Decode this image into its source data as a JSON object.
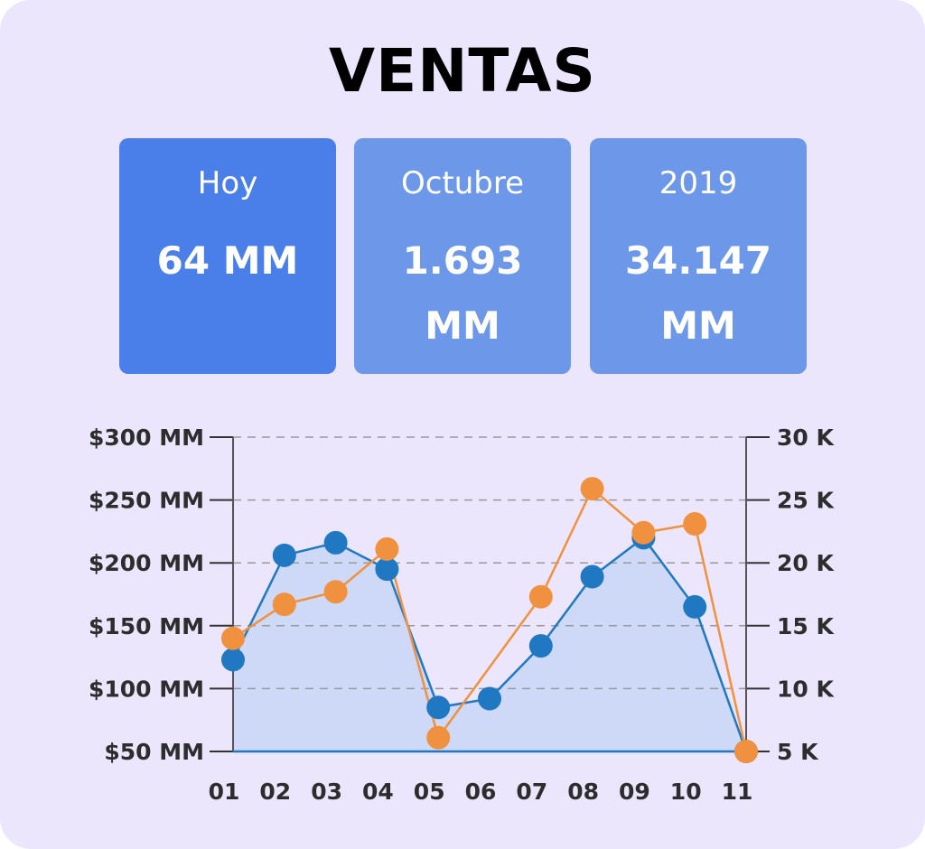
{
  "title": "VENTAS",
  "kpis": [
    {
      "label": "Hoy",
      "value": "64 MM"
    },
    {
      "label": "Octubre",
      "value": "1.693 MM"
    },
    {
      "label": "2019",
      "value": "34.147 MM"
    }
  ],
  "colors": {
    "background": "#ebe6fc",
    "kpi_primary": "#4a7fe9",
    "kpi_secondary": "#6d98e9",
    "series_blue": "#1f78c1",
    "series_orange": "#f0913f",
    "area_fill": "#cdd9f6",
    "grid": "#9a9a9a"
  },
  "chart_data": {
    "type": "line",
    "title": "",
    "categories": [
      "01",
      "02",
      "03",
      "04",
      "05",
      "06",
      "07",
      "08",
      "09",
      "10",
      "11"
    ],
    "series": [
      {
        "axis": "left",
        "style": "area",
        "color": "#1f78c1",
        "values": [
          123,
          206,
          216,
          195,
          85,
          92,
          134,
          189,
          220,
          165,
          50
        ]
      },
      {
        "axis": "right",
        "style": "line",
        "color": "#f0913f",
        "values": [
          14,
          16.7,
          17.7,
          21.1,
          6.1,
          null,
          17.3,
          25.9,
          22.4,
          23.1,
          5
        ]
      }
    ],
    "y_left": {
      "ylim": [
        50,
        300
      ],
      "ticks": [
        300,
        250,
        200,
        150,
        100,
        50
      ],
      "tick_labels": [
        "$300 MM",
        "$250 MM",
        "$200 MM",
        "$150 MM",
        "$100 MM",
        "$50 MM"
      ]
    },
    "y_right": {
      "ylim": [
        5,
        30
      ],
      "ticks": [
        30,
        25,
        20,
        15,
        10,
        5
      ],
      "tick_labels": [
        "30 K",
        "25 K",
        "20 K",
        "15 K",
        "10 K",
        "5 K"
      ]
    },
    "grid": true,
    "legend": "none"
  }
}
